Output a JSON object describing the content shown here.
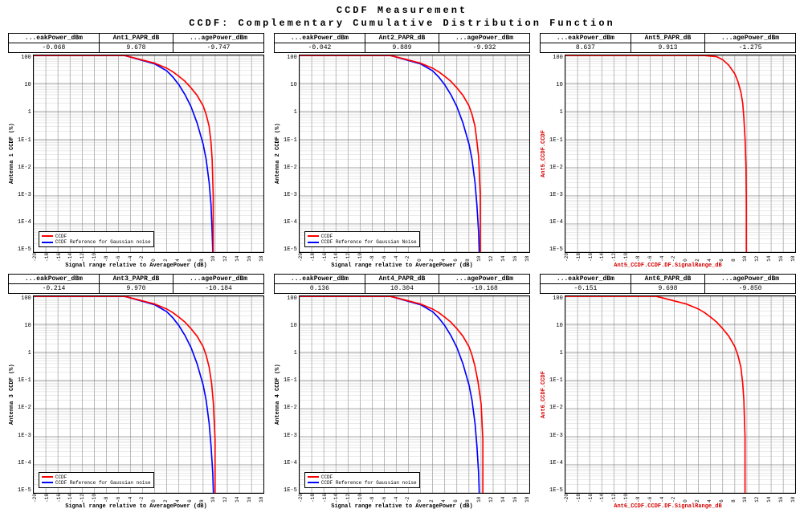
{
  "title1": "CCDF Measurement",
  "title2": "CCDF: Complementary Cumulative Distribution Function",
  "global_style": {
    "background_color": "#ffffff",
    "grid_major_color": "#808080",
    "grid_minor_color": "#c0c0c0",
    "axis_color": "#000000",
    "ccdf_color": "#ff0000",
    "gaussian_color": "#0000ff",
    "font_family": "Courier New",
    "title_fontsize": 12,
    "tick_fontsize": 7,
    "legend_fontsize": 6,
    "line_width": 1.5,
    "y_scale": "log",
    "y_tick_labels": [
      "100",
      "10",
      "1",
      "1E-1",
      "1E-2",
      "1E-3",
      "1E-4",
      "1E-5"
    ],
    "y_tick_vals": [
      100,
      10,
      1,
      0.1,
      0.01,
      0.001,
      0.0001,
      1e-05
    ],
    "x_ticks": [
      -20,
      -18,
      -16,
      -14,
      -12,
      -10,
      -8,
      -6,
      -4,
      -2,
      0,
      2,
      4,
      6,
      8,
      10,
      12,
      14,
      16,
      18
    ]
  },
  "panels": [
    {
      "id": "p1",
      "header_cols": [
        "...eakPower_dBm",
        "Ant1_PAPR_dB",
        "...agePower_dBm"
      ],
      "header_vals": [
        "-0.068",
        "9.678",
        "-9.747"
      ],
      "ylabel": "Antenna 1 CCDF (%)",
      "xlabel": "Signal range relative to AveragePower (dB)",
      "label_color": "#000000",
      "show_gaussian": true,
      "legend": [
        "CCDF",
        "CCDF Reference for Gaussian noise"
      ],
      "ccdf_points": [
        [
          -20,
          100
        ],
        [
          -10,
          100
        ],
        [
          -5,
          100
        ],
        [
          0,
          53
        ],
        [
          2,
          35
        ],
        [
          3,
          26
        ],
        [
          4,
          18
        ],
        [
          5,
          12
        ],
        [
          6,
          7
        ],
        [
          7,
          3.8
        ],
        [
          8,
          1.6
        ],
        [
          8.5,
          0.8
        ],
        [
          9,
          0.3
        ],
        [
          9.3,
          0.08
        ],
        [
          9.5,
          0.02
        ],
        [
          9.67,
          0.001
        ],
        [
          9.67,
          1e-05
        ]
      ],
      "gauss_points": [
        [
          -20,
          100
        ],
        [
          -5,
          100
        ],
        [
          0,
          50
        ],
        [
          2,
          28
        ],
        [
          3,
          17
        ],
        [
          4,
          9
        ],
        [
          5,
          4
        ],
        [
          6,
          1.5
        ],
        [
          7,
          0.4
        ],
        [
          8,
          0.07
        ],
        [
          8.5,
          0.02
        ],
        [
          9,
          0.003
        ],
        [
          9.3,
          0.0005
        ],
        [
          9.5,
          5e-05
        ],
        [
          9.6,
          1e-05
        ]
      ]
    },
    {
      "id": "p2",
      "header_cols": [
        "...eakPower_dBm",
        "Ant2_PAPR_dB",
        "...agePower_dBm"
      ],
      "header_vals": [
        "-0.042",
        "9.889",
        "-9.932"
      ],
      "ylabel": "Antenna 2 CCDF (%)",
      "xlabel": "Signal range relative to AveragePower (dB)",
      "label_color": "#000000",
      "show_gaussian": true,
      "legend": [
        "CCDF",
        "CCDF Reference for Gaussian Noise"
      ],
      "ccdf_points": [
        [
          -20,
          100
        ],
        [
          -10,
          100
        ],
        [
          -5,
          100
        ],
        [
          0,
          53
        ],
        [
          2,
          35
        ],
        [
          3,
          26
        ],
        [
          4,
          18
        ],
        [
          5,
          12
        ],
        [
          6,
          7
        ],
        [
          7,
          3.8
        ],
        [
          8,
          1.6
        ],
        [
          8.5,
          0.8
        ],
        [
          9,
          0.3
        ],
        [
          9.3,
          0.09
        ],
        [
          9.6,
          0.025
        ],
        [
          9.88,
          0.001
        ],
        [
          9.88,
          1e-05
        ]
      ],
      "gauss_points": [
        [
          -20,
          100
        ],
        [
          -5,
          100
        ],
        [
          0,
          50
        ],
        [
          2,
          28
        ],
        [
          3,
          17
        ],
        [
          4,
          9
        ],
        [
          5,
          4
        ],
        [
          6,
          1.5
        ],
        [
          7,
          0.4
        ],
        [
          8,
          0.07
        ],
        [
          8.5,
          0.02
        ],
        [
          9,
          0.003
        ],
        [
          9.3,
          0.0005
        ],
        [
          9.6,
          5e-05
        ],
        [
          9.7,
          1e-05
        ]
      ]
    },
    {
      "id": "p3",
      "header_cols": [
        "...eakPower_dBm",
        "Ant5_PAPR_dB",
        "...agePower_dBm"
      ],
      "header_vals": [
        "8.637",
        "9.913",
        "-1.275"
      ],
      "ylabel": "Ant5_CCDF.CCDF",
      "xlabel": "Ant5_CCDF.CCDF.DF.SignalRange_dB",
      "label_color": "#d40000",
      "show_gaussian": false,
      "legend": null,
      "ccdf_points": [
        [
          -20,
          100
        ],
        [
          -10,
          100
        ],
        [
          -5,
          100
        ],
        [
          0,
          100
        ],
        [
          3,
          99
        ],
        [
          5,
          90
        ],
        [
          6,
          70
        ],
        [
          7,
          45
        ],
        [
          8,
          22
        ],
        [
          8.5,
          12
        ],
        [
          9,
          5
        ],
        [
          9.3,
          2
        ],
        [
          9.5,
          0.6
        ],
        [
          9.7,
          0.1
        ],
        [
          9.85,
          0.01
        ],
        [
          9.91,
          0.0005
        ],
        [
          9.91,
          1e-05
        ]
      ],
      "gauss_points": []
    },
    {
      "id": "p4",
      "header_cols": [
        "...eakPower_dBm",
        "Ant3_PAPR_dB",
        "...agePower_dBm"
      ],
      "header_vals": [
        "-0.214",
        "9.970",
        "-10.184"
      ],
      "ylabel": "Antenna 3 CCDF (%)",
      "xlabel": "Signal range relative to AveragePower (dB)",
      "label_color": "#000000",
      "show_gaussian": true,
      "legend": [
        "CCDF",
        "CCDF Reference for Gaussian noise"
      ],
      "ccdf_points": [
        [
          -20,
          100
        ],
        [
          -10,
          100
        ],
        [
          -5,
          100
        ],
        [
          0,
          53
        ],
        [
          2,
          35
        ],
        [
          3,
          26
        ],
        [
          4,
          18
        ],
        [
          5,
          12
        ],
        [
          6,
          7
        ],
        [
          7,
          3.8
        ],
        [
          8,
          1.6
        ],
        [
          8.5,
          0.8
        ],
        [
          9,
          0.3
        ],
        [
          9.4,
          0.08
        ],
        [
          9.7,
          0.015
        ],
        [
          9.97,
          0.0008
        ],
        [
          9.97,
          1e-05
        ]
      ],
      "gauss_points": [
        [
          -20,
          100
        ],
        [
          -5,
          100
        ],
        [
          0,
          50
        ],
        [
          2,
          28
        ],
        [
          3,
          17
        ],
        [
          4,
          9
        ],
        [
          5,
          4
        ],
        [
          6,
          1.5
        ],
        [
          7,
          0.4
        ],
        [
          8,
          0.07
        ],
        [
          8.5,
          0.02
        ],
        [
          9,
          0.003
        ],
        [
          9.3,
          0.0005
        ],
        [
          9.6,
          5e-05
        ],
        [
          9.7,
          1e-05
        ]
      ]
    },
    {
      "id": "p5",
      "header_cols": [
        "...eakPower_dBm",
        "Ant4_PAPR_dB",
        "...agePower_dBm"
      ],
      "header_vals": [
        "0.136",
        "10.304",
        "-10.168"
      ],
      "ylabel": "Antenna 4 CCDF (%)",
      "xlabel": "Signal range relative to AveragePower (dB)",
      "label_color": "#000000",
      "show_gaussian": true,
      "legend": [
        "CCDF",
        "CCDF Reference for Gaussian noise"
      ],
      "ccdf_points": [
        [
          -20,
          100
        ],
        [
          -10,
          100
        ],
        [
          -5,
          100
        ],
        [
          0,
          53
        ],
        [
          2,
          35
        ],
        [
          3,
          26
        ],
        [
          4,
          18
        ],
        [
          5,
          12
        ],
        [
          6,
          7
        ],
        [
          7,
          3.8
        ],
        [
          8,
          1.6
        ],
        [
          8.5,
          0.8
        ],
        [
          9,
          0.32
        ],
        [
          9.5,
          0.09
        ],
        [
          10,
          0.015
        ],
        [
          10.3,
          0.0008
        ],
        [
          10.3,
          1e-05
        ]
      ],
      "gauss_points": [
        [
          -20,
          100
        ],
        [
          -5,
          100
        ],
        [
          0,
          50
        ],
        [
          2,
          28
        ],
        [
          3,
          17
        ],
        [
          4,
          9
        ],
        [
          5,
          4
        ],
        [
          6,
          1.5
        ],
        [
          7,
          0.4
        ],
        [
          8,
          0.07
        ],
        [
          8.5,
          0.02
        ],
        [
          9,
          0.003
        ],
        [
          9.3,
          0.0005
        ],
        [
          9.6,
          5e-05
        ],
        [
          9.7,
          1e-05
        ]
      ]
    },
    {
      "id": "p6",
      "header_cols": [
        "...eakPower_dBm",
        "Ant6_PAPR_dB",
        "...agePower_dBm"
      ],
      "header_vals": [
        "-0.151",
        "9.698",
        "-9.850"
      ],
      "ylabel": "Ant6_CCDF.CCDF",
      "xlabel": "Ant6_CCDF.CCDF.DF.SignalRange_dB",
      "label_color": "#d40000",
      "show_gaussian": false,
      "legend": null,
      "ccdf_points": [
        [
          -20,
          100
        ],
        [
          -10,
          100
        ],
        [
          -5,
          100
        ],
        [
          0,
          53
        ],
        [
          2,
          35
        ],
        [
          3,
          26
        ],
        [
          4,
          18
        ],
        [
          5,
          12
        ],
        [
          6,
          7
        ],
        [
          7,
          3.8
        ],
        [
          8,
          1.6
        ],
        [
          8.5,
          0.8
        ],
        [
          9,
          0.3
        ],
        [
          9.3,
          0.08
        ],
        [
          9.5,
          0.02
        ],
        [
          9.69,
          0.001
        ],
        [
          9.69,
          1e-05
        ]
      ],
      "gauss_points": []
    }
  ]
}
